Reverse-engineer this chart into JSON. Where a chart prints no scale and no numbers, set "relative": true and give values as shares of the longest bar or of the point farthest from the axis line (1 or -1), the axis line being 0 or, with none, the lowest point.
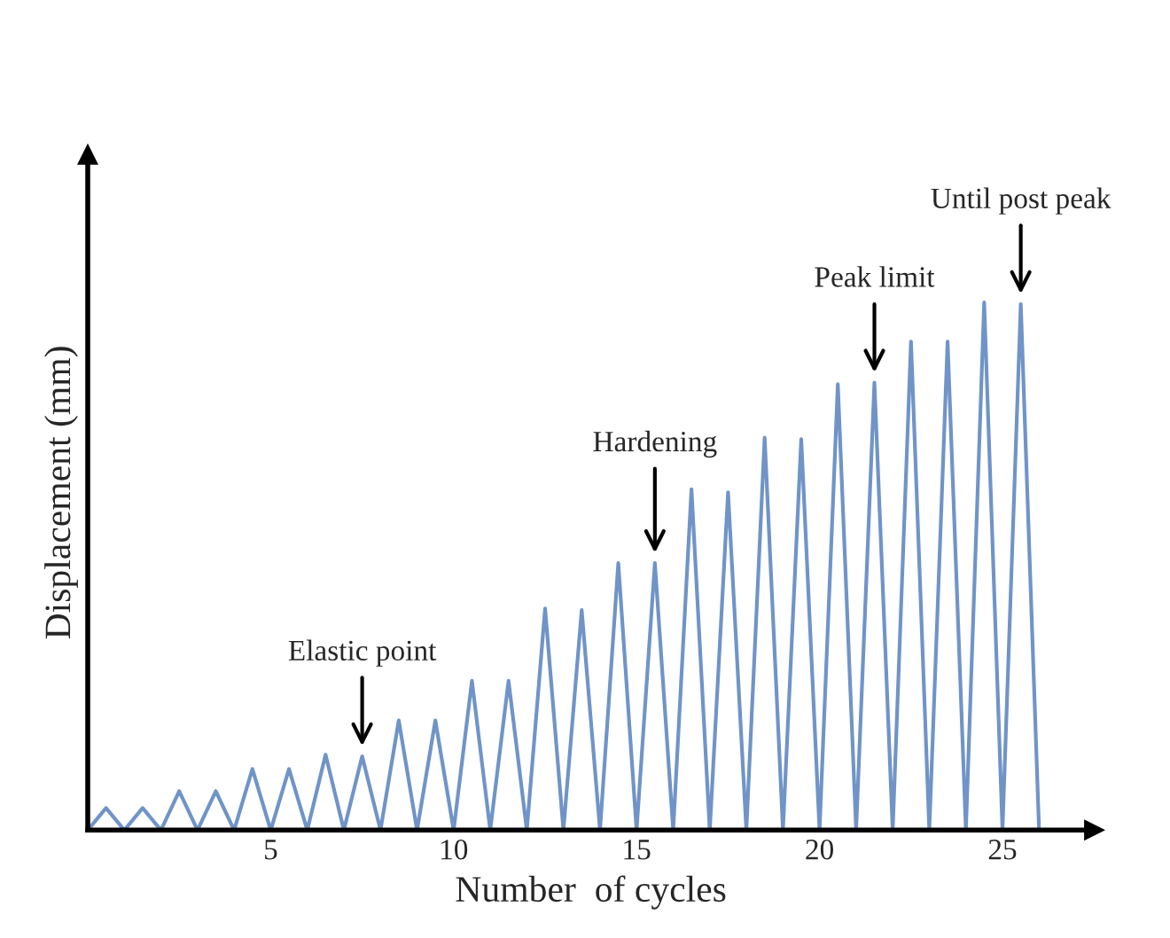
{
  "chart_data": {
    "type": "line",
    "relative": true,
    "xlabel": "Number  of cycles",
    "ylabel": "Displacement (mm)",
    "x": [
      0,
      0.5,
      1,
      1.5,
      2,
      2.5,
      3,
      3.5,
      4,
      4.5,
      5,
      5.5,
      6,
      6.5,
      7,
      7.5,
      8,
      8.5,
      9,
      9.5,
      10,
      10.5,
      11,
      11.5,
      12,
      12.5,
      13,
      13.5,
      14,
      14.5,
      15,
      15.5,
      16,
      16.5,
      17,
      17.5,
      18,
      18.5,
      19,
      19.5,
      20,
      20.5,
      21,
      21.5,
      22,
      22.5,
      23,
      23.5,
      24,
      24.5,
      25,
      25.5,
      26
    ],
    "series": [
      {
        "color": "#7094c8",
        "values": [
          0,
          0.042,
          0,
          0.042,
          0,
          0.074,
          0,
          0.074,
          0,
          0.116,
          0,
          0.116,
          0,
          0.143,
          0,
          0.14,
          0,
          0.208,
          0,
          0.208,
          0,
          0.283,
          0,
          0.283,
          0,
          0.42,
          0,
          0.417,
          0,
          0.506,
          0,
          0.506,
          0,
          0.646,
          0,
          0.64,
          0,
          0.744,
          0,
          0.741,
          0,
          0.845,
          0,
          0.848,
          0,
          0.926,
          0,
          0.926,
          0,
          1,
          0,
          0.997,
          0
        ]
      }
    ],
    "xlim": [
      0,
      27.5
    ],
    "xticks": [
      5,
      10,
      15,
      20,
      25
    ],
    "grid": false,
    "legend": false,
    "marker": "none",
    "line_style": "solid",
    "annotations": [
      {
        "text": "Elastic point",
        "x": 7.5,
        "y": 0.14
      },
      {
        "text": "Hardening",
        "x": 15.5,
        "y": 0.506
      },
      {
        "text": "Peak limit",
        "x": 21.5,
        "y": 0.848
      },
      {
        "text": "Until post peak",
        "x": 25.5,
        "y": 0.997
      }
    ]
  }
}
